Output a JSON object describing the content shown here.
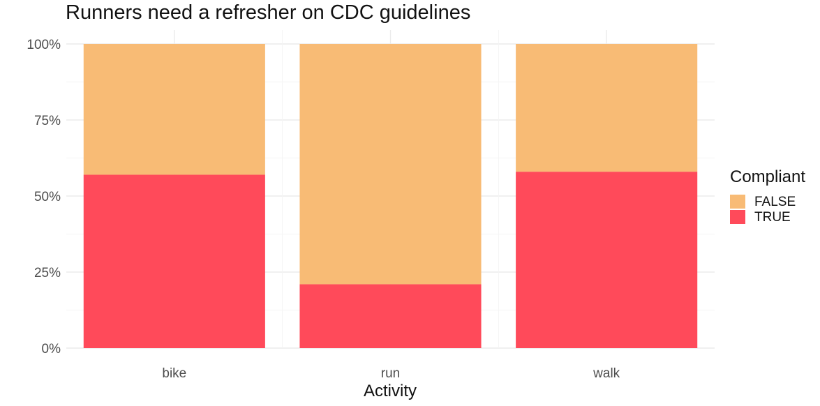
{
  "chart_data": {
    "type": "bar",
    "stacked": true,
    "percent_stacked": true,
    "title": "Runners need a refresher on CDC guidelines",
    "xlabel": "Activity",
    "ylabel": "",
    "categories": [
      "bike",
      "run",
      "walk"
    ],
    "y_ticks": [
      "0%",
      "25%",
      "50%",
      "75%",
      "100%"
    ],
    "ylim": [
      0,
      1
    ],
    "legend": {
      "title": "Compliant",
      "position": "right"
    },
    "series": [
      {
        "name": "TRUE",
        "color": "#FF4A5A",
        "values": [
          0.57,
          0.21,
          0.58
        ]
      },
      {
        "name": "FALSE",
        "color": "#F8BB75",
        "values": [
          0.43,
          0.79,
          0.42
        ]
      }
    ],
    "legend_order": [
      "FALSE",
      "TRUE"
    ],
    "grid": true
  }
}
